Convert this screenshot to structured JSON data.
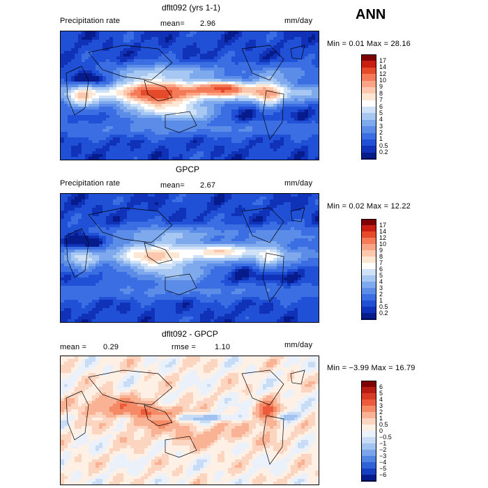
{
  "season": "ANN",
  "chart_data": [
    {
      "type": "heatmap",
      "title": "dflt092 (yrs 1-1)",
      "variable": "Precipitation rate",
      "mean_label": "mean=",
      "mean": "2.96",
      "units": "mm/day",
      "minmax_text": "Min =    0.01  Max =   28.16",
      "min": 0.01,
      "max": 28.16,
      "levels": [
        "17",
        "14",
        "12",
        "10",
        "9",
        "8",
        "7",
        "6",
        "5",
        "4",
        "3",
        "2",
        "1",
        "0.5",
        "0.2"
      ],
      "colors": [
        "#7f0000",
        "#c81e14",
        "#e54a2b",
        "#f47a58",
        "#f9a585",
        "#fcc8ad",
        "#fde6d2",
        "#ffffff",
        "#cfe1f7",
        "#a6c7f2",
        "#7eaaed",
        "#5a8ce8",
        "#3b6ee3",
        "#2050d6",
        "#0f32b8",
        "#061b8c"
      ]
    },
    {
      "type": "heatmap",
      "title": "GPCP",
      "variable": "Precipitation rate",
      "mean_label": "mean=",
      "mean": "2.67",
      "units": "mm/day",
      "minmax_text": "Min =    0.02  Max =   12.22",
      "min": 0.02,
      "max": 12.22,
      "levels": [
        "17",
        "14",
        "12",
        "10",
        "9",
        "8",
        "7",
        "6",
        "5",
        "4",
        "3",
        "2",
        "1",
        "0.5",
        "0.2"
      ],
      "colors": [
        "#7f0000",
        "#c81e14",
        "#e54a2b",
        "#f47a58",
        "#f9a585",
        "#fcc8ad",
        "#fde6d2",
        "#ffffff",
        "#cfe1f7",
        "#a6c7f2",
        "#7eaaed",
        "#5a8ce8",
        "#3b6ee3",
        "#2050d6",
        "#0f32b8",
        "#061b8c"
      ]
    },
    {
      "type": "heatmap",
      "title": "dflt092 - GPCP",
      "mean_label": "mean =",
      "mean": "0.29",
      "rmse_label": "rmse =",
      "rmse": "1.10",
      "units": "mm/day",
      "minmax_text": "Min =   −3.99  Max =   16.79",
      "min": -3.99,
      "max": 16.79,
      "levels": [
        "6",
        "5",
        "4",
        "3",
        "2",
        "1",
        "0.5",
        "0",
        "−0.5",
        "−1",
        "−2",
        "−3",
        "−4",
        "−5",
        "−6"
      ],
      "colors": [
        "#7f0000",
        "#b71c12",
        "#d83a24",
        "#ec5c3c",
        "#f58a66",
        "#f9b294",
        "#fcd5c0",
        "#fff0e6",
        "#eaf1fb",
        "#c9dcf5",
        "#a2c2ef",
        "#7aa5ea",
        "#5285e3",
        "#2f62d8",
        "#173fc0",
        "#061b8c"
      ]
    }
  ]
}
